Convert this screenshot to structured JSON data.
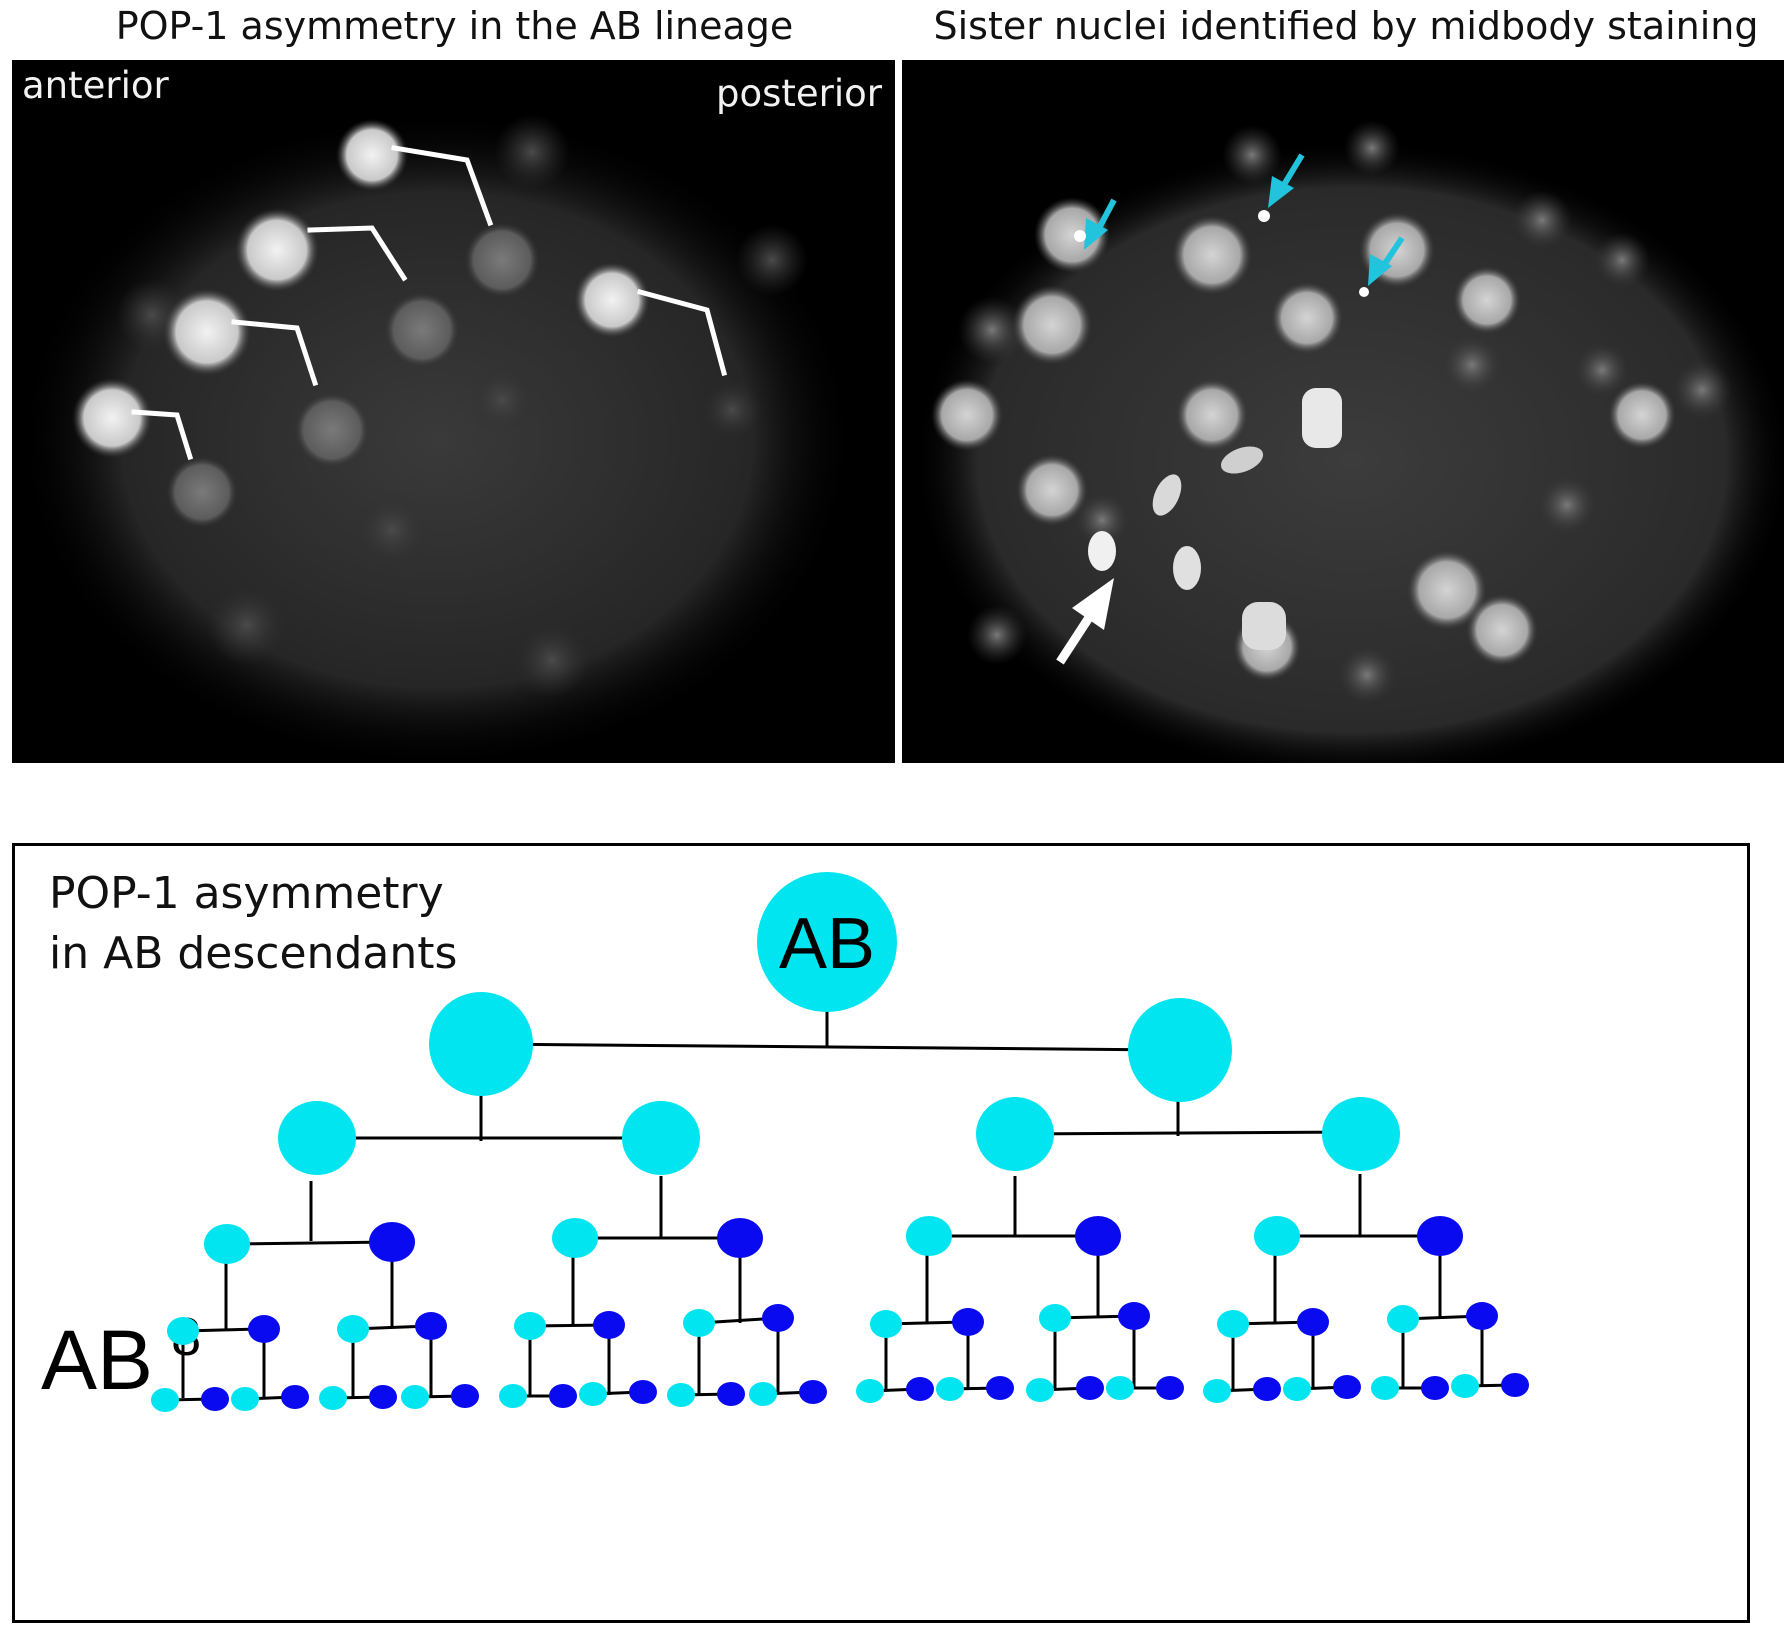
{
  "panels": {
    "left": {
      "caption": "POP-1 asymmetry in the AB lineage",
      "label_anterior": "anterior",
      "label_posterior": "posterior"
    },
    "right": {
      "caption": "Sister nuclei identified by midbody staining",
      "arrow_colors": {
        "midbody": "#22c3dd",
        "highlight": "#ffffff"
      }
    }
  },
  "tree": {
    "title_line1": "POP-1 asymmetry",
    "title_line2": "in AB descendants",
    "root_label": "AB",
    "generation_label": "AB",
    "generation_sup": "8",
    "colors": {
      "high": "#00e5ef",
      "low": "#0a0af0",
      "line": "#000000"
    }
  }
}
